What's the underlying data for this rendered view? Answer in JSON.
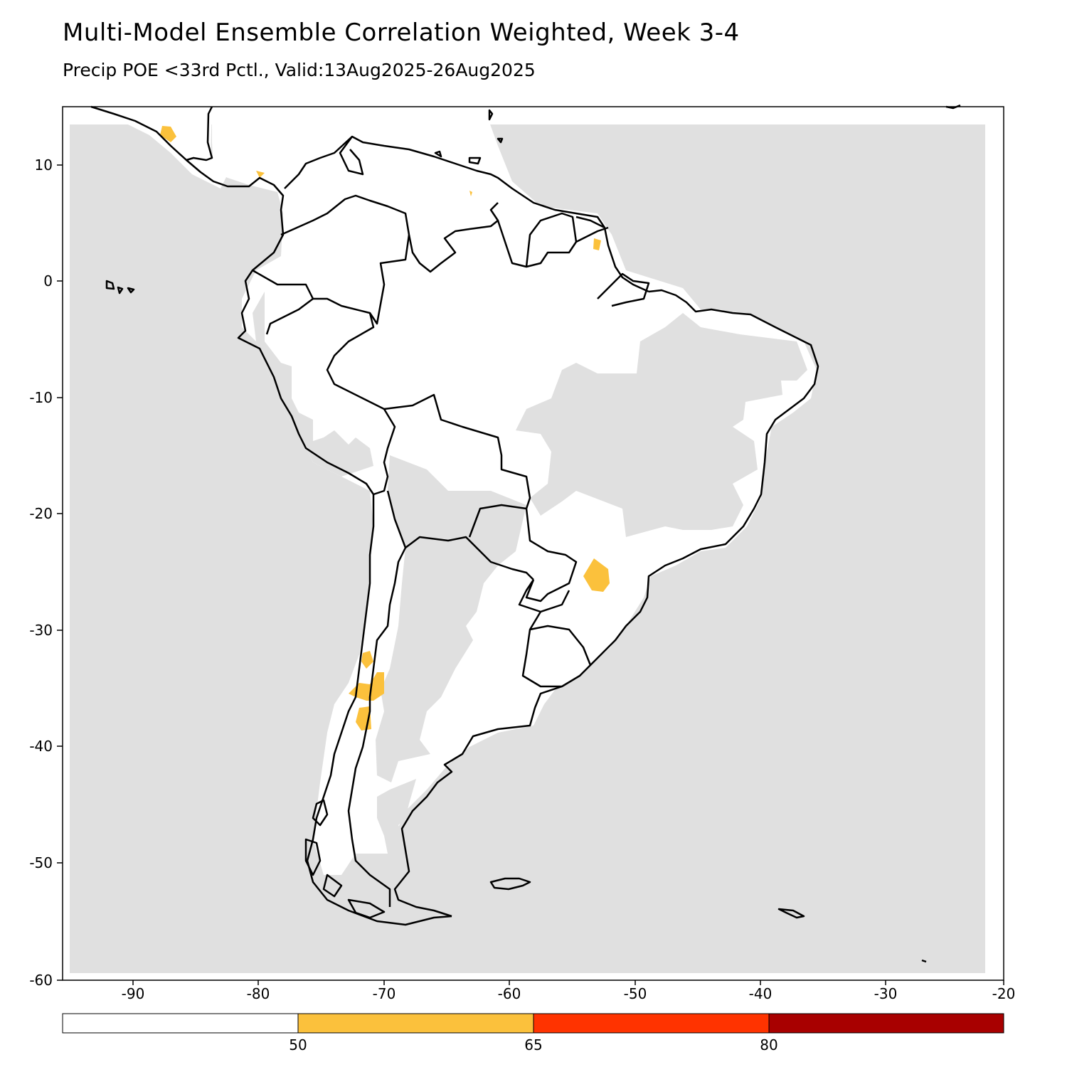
{
  "header": {
    "title": "Multi-Model Ensemble Correlation Weighted, Week 3-4",
    "subtitle": "Precip POE <33rd Pctl., Valid:13Aug2025-26Aug2025"
  },
  "map": {
    "region": "South America",
    "lon_range": [
      -95,
      -20
    ],
    "lat_range": [
      -60,
      15
    ],
    "background_color": "#e0e0e0",
    "land_no_signal_color": "#ffffff",
    "coastline_color": "#000000",
    "x_ticks": [
      "-90",
      "-80",
      "-70",
      "-60",
      "-50",
      "-40",
      "-30",
      "-20"
    ],
    "y_ticks": [
      "10",
      "0",
      "-10",
      "-20",
      "-30",
      "-40",
      "-50",
      "-60"
    ]
  },
  "colorbar": {
    "bins": [
      {
        "color": "#ffffff"
      },
      {
        "color": "#fbc13c"
      },
      {
        "color": "#ff3300"
      },
      {
        "color": "#a80000"
      }
    ],
    "labels": [
      "50",
      "65",
      "80"
    ]
  }
}
